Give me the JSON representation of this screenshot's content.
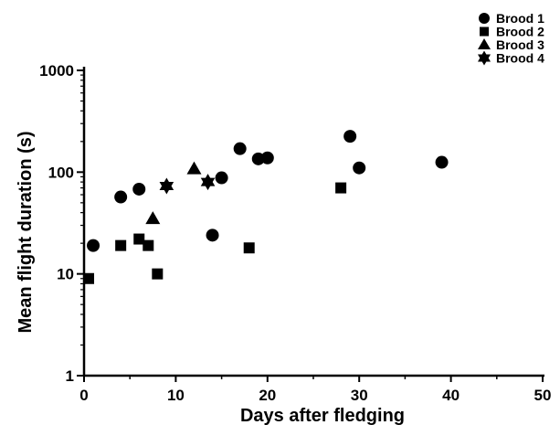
{
  "chart_data": {
    "type": "scatter",
    "title": "",
    "xlabel": "Days after fledging",
    "ylabel": "Mean flight duration (s)",
    "xlim": [
      0,
      50
    ],
    "ylim": [
      1,
      1000
    ],
    "yscale": "log",
    "x_ticks": [
      "0",
      "10",
      "20",
      "30",
      "40",
      "50"
    ],
    "y_ticks": [
      "1",
      "10",
      "100",
      "1000"
    ],
    "grid": false,
    "legend_position": "top-right",
    "series": [
      {
        "name": "Brood 1",
        "marker": "circle",
        "x": [
          1,
          4,
          6,
          14,
          15,
          17,
          19,
          20,
          29,
          30,
          39
        ],
        "y": [
          19,
          57,
          68,
          24,
          88,
          170,
          135,
          138,
          225,
          110,
          125
        ]
      },
      {
        "name": "Brood 2",
        "marker": "square",
        "x": [
          0.5,
          4,
          6,
          7,
          8,
          18,
          28
        ],
        "y": [
          9,
          19,
          22,
          19,
          10,
          18,
          70
        ]
      },
      {
        "name": "Brood 3",
        "marker": "triangle",
        "x": [
          7.5,
          12
        ],
        "y": [
          35,
          108
        ]
      },
      {
        "name": "Brood 4",
        "marker": "star",
        "x": [
          9,
          13.5
        ],
        "y": [
          73,
          80
        ]
      }
    ]
  }
}
